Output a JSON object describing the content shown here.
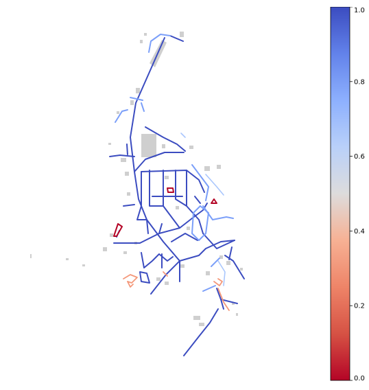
{
  "colormap": {
    "name": "coolwarm",
    "low_color": "#b40426",
    "mid_color": "#dddcdc",
    "high_color": "#3b4cc0",
    "ticks": [
      "0.0",
      "0.2",
      "0.4",
      "0.6",
      "0.8",
      "1.0"
    ]
  },
  "map_colors": {
    "buildings": "#cfcfcf",
    "road_high": "#3b4cc0",
    "road_mid_high": "#7b9ff9",
    "road_low": "#f4987a",
    "road_lowest": "#b40426"
  }
}
